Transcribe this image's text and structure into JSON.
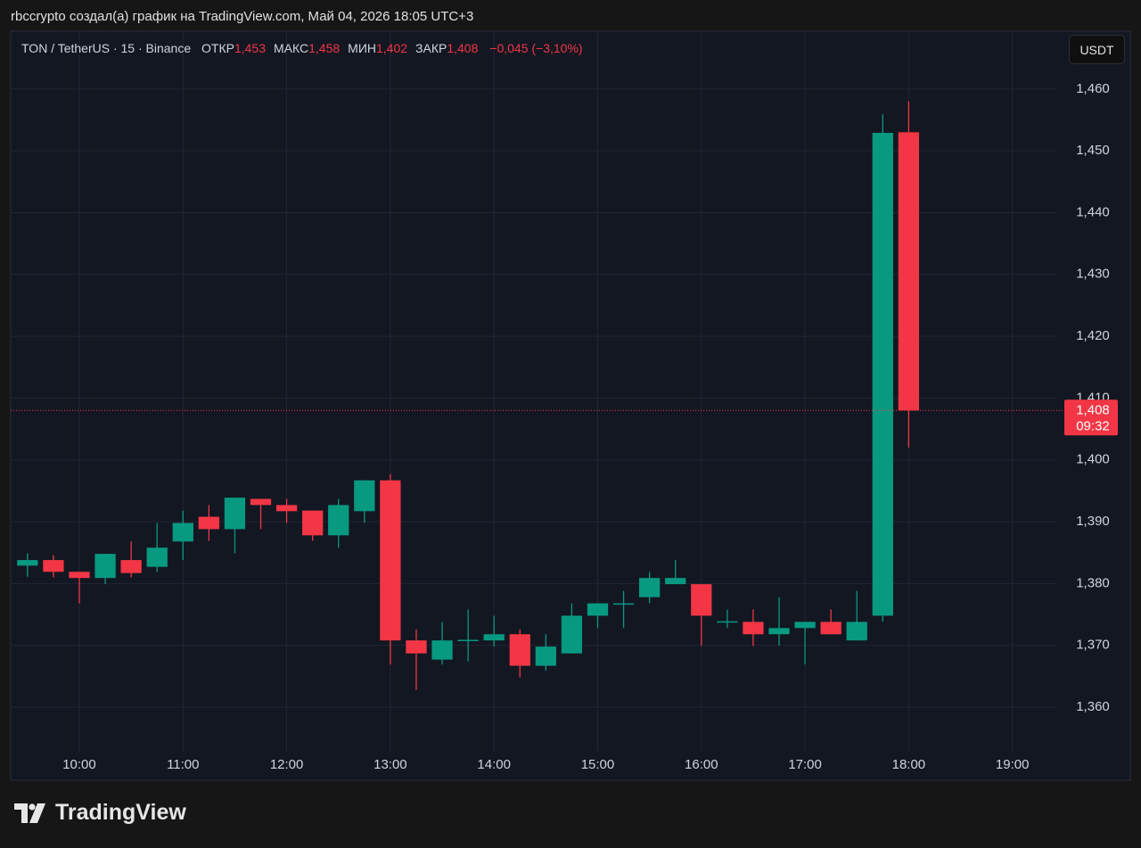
{
  "header": "rbccrypto создал(а) график на TradingView.com, Май 04, 2026 18:05 UTC+3",
  "brand": "TradingView",
  "currency_button": "USDT",
  "chart_data": {
    "type": "candlestick",
    "legend": {
      "symbol": "TON / TetherUS · 15 · Binance",
      "fields": [
        {
          "label": "ОТКР",
          "value": "1,453"
        },
        {
          "label": "МАКС",
          "value": "1,458"
        },
        {
          "label": "МИН",
          "value": "1,402"
        },
        {
          "label": "ЗАКР",
          "value": "1,408"
        }
      ],
      "change": "−0,045 (−3,10%)"
    },
    "x": [
      9.5,
      9.75,
      10,
      10.25,
      10.5,
      10.75,
      11,
      11.25,
      11.5,
      11.75,
      12,
      12.25,
      12.5,
      12.75,
      13,
      13.25,
      13.5,
      13.75,
      14,
      14.25,
      14.5,
      14.75,
      15,
      15.25,
      15.5,
      15.75,
      16,
      16.25,
      16.5,
      16.75,
      17,
      17.25,
      17.5,
      17.75,
      18
    ],
    "open": [
      1.3829,
      1.3838,
      1.3819,
      1.3809,
      1.3838,
      1.3827,
      1.3868,
      1.3908,
      1.3888,
      1.3937,
      1.3927,
      1.3918,
      1.3878,
      1.3917,
      1.3967,
      1.3708,
      1.3677,
      1.3708,
      1.3708,
      1.3718,
      1.3667,
      1.3687,
      1.3748,
      1.3767,
      1.3778,
      1.3799,
      1.3799,
      1.3738,
      1.3738,
      1.3718,
      1.3728,
      1.3738,
      1.3708,
      1.3748,
      1.453
    ],
    "high": [
      1.3849,
      1.3846,
      1.3819,
      1.3848,
      1.3868,
      1.3898,
      1.3918,
      1.3927,
      1.3939,
      1.3937,
      1.3937,
      1.3918,
      1.3937,
      1.3967,
      1.3977,
      1.3726,
      1.3738,
      1.3758,
      1.3748,
      1.3726,
      1.3718,
      1.3768,
      1.3768,
      1.3788,
      1.3819,
      1.3838,
      1.3799,
      1.3758,
      1.3758,
      1.3778,
      1.3738,
      1.3758,
      1.3788,
      1.4559,
      1.458
    ],
    "low": [
      1.3811,
      1.381,
      1.3768,
      1.3799,
      1.381,
      1.3819,
      1.3838,
      1.3869,
      1.3849,
      1.3888,
      1.3898,
      1.3869,
      1.3858,
      1.3898,
      1.3669,
      1.3628,
      1.3669,
      1.3674,
      1.3698,
      1.3648,
      1.3659,
      1.3687,
      1.3728,
      1.3728,
      1.3768,
      1.3799,
      1.3699,
      1.3728,
      1.3699,
      1.3699,
      1.3669,
      1.3718,
      1.3708,
      1.3738,
      1.402
    ],
    "close": [
      1.3838,
      1.3819,
      1.3809,
      1.3848,
      1.3817,
      1.3858,
      1.3898,
      1.3888,
      1.3939,
      1.3927,
      1.3917,
      1.3878,
      1.3927,
      1.3967,
      1.3708,
      1.3687,
      1.3708,
      1.3709,
      1.3718,
      1.3667,
      1.3698,
      1.3748,
      1.3768,
      1.3768,
      1.3809,
      1.3809,
      1.3748,
      1.3739,
      1.3718,
      1.3728,
      1.3738,
      1.3718,
      1.3738,
      1.4529,
      1.408
    ],
    "colors": {
      "up": "#089981",
      "down": "#f23645"
    },
    "xlim": [
      9.338,
      19.424
    ],
    "xticks": [
      {
        "value": 10,
        "label": "10:00"
      },
      {
        "value": 11,
        "label": "11:00"
      },
      {
        "value": 12,
        "label": "12:00"
      },
      {
        "value": 13,
        "label": "13:00"
      },
      {
        "value": 14,
        "label": "14:00"
      },
      {
        "value": 15,
        "label": "15:00"
      },
      {
        "value": 16,
        "label": "16:00"
      },
      {
        "value": 17,
        "label": "17:00"
      },
      {
        "value": 18,
        "label": "18:00"
      },
      {
        "value": 19,
        "label": "19:00"
      }
    ],
    "ylim": [
      1.3528,
      1.4692
    ],
    "yticks": [
      {
        "value": 1.36,
        "label": "1,360"
      },
      {
        "value": 1.37,
        "label": "1,370"
      },
      {
        "value": 1.38,
        "label": "1,380"
      },
      {
        "value": 1.39,
        "label": "1,390"
      },
      {
        "value": 1.4,
        "label": "1,400"
      },
      {
        "value": 1.41,
        "label": "1,410"
      },
      {
        "value": 1.42,
        "label": "1,420"
      },
      {
        "value": 1.43,
        "label": "1,430"
      },
      {
        "value": 1.44,
        "label": "1,440"
      },
      {
        "value": 1.45,
        "label": "1,450"
      },
      {
        "value": 1.46,
        "label": "1,460"
      }
    ],
    "grid": true,
    "last_price": {
      "value": 1.408,
      "label": "1,408",
      "countdown": "09:32"
    }
  }
}
